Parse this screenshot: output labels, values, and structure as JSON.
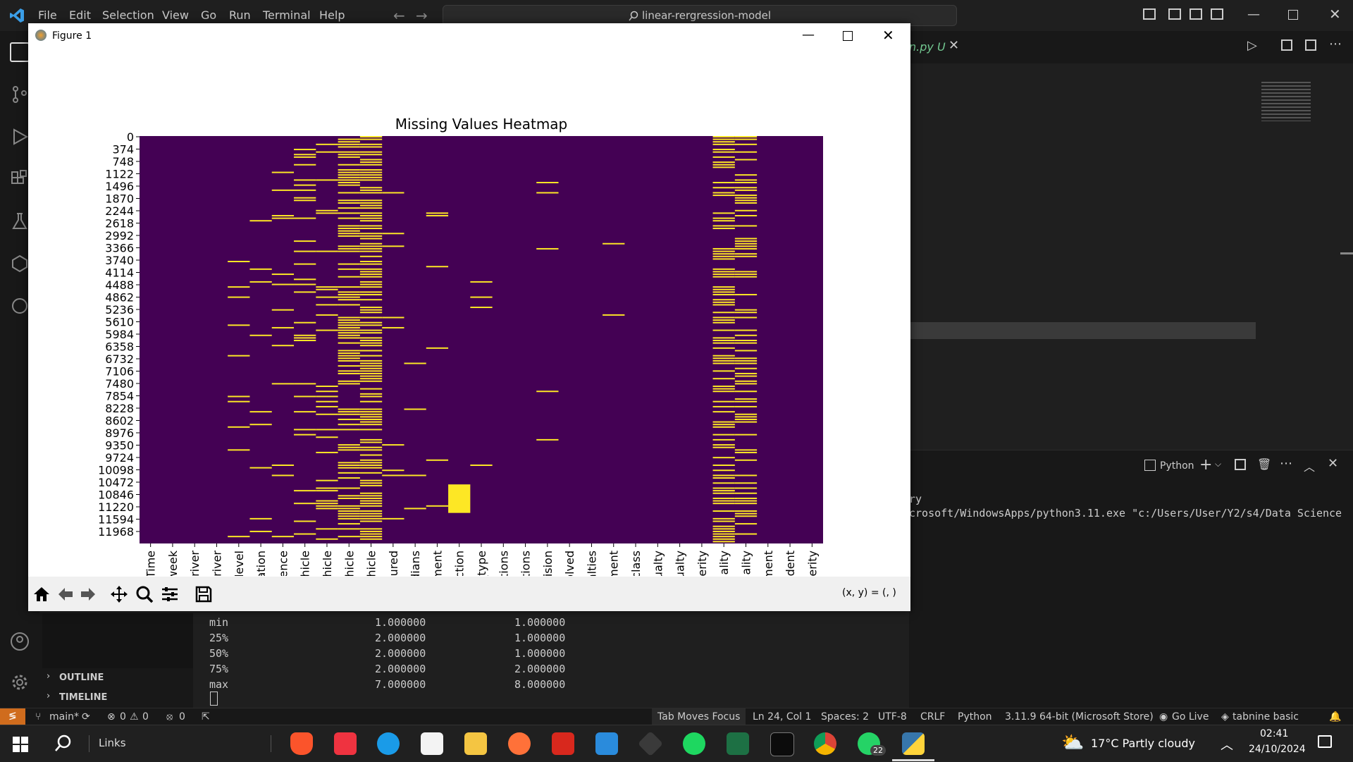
{
  "menu": [
    "File",
    "Edit",
    "Selection",
    "View",
    "Go",
    "Run",
    "Terminal",
    "Help"
  ],
  "search": {
    "text": "linear-rergression-model"
  },
  "editor_tab": {
    "label": "n.py",
    "badge": "U"
  },
  "figure": {
    "title": "Figure 1",
    "coords": "(x, y) = (, )",
    "plot_title": "Missing Values Heatmap"
  },
  "chart_data": {
    "type": "heatmap",
    "title": "Missing Values Heatmap",
    "y_ticks": [
      "0",
      "374",
      "748",
      "1122",
      "1496",
      "1870",
      "2244",
      "2618",
      "2992",
      "3366",
      "3740",
      "4114",
      "4488",
      "4862",
      "5236",
      "5610",
      "5984",
      "6358",
      "6732",
      "7106",
      "7480",
      "7854",
      "8228",
      "8602",
      "8976",
      "9350",
      "9724",
      "10098",
      "10472",
      "10846",
      "11220",
      "11594",
      "11968"
    ],
    "x_ticks": [
      "Time",
      "of_week",
      "f_driver",
      "f_driver",
      "al_level",
      "relation",
      "erience",
      "_vehicle",
      "_vehicle",
      "_vehicle",
      "_vehicle",
      "occured",
      "Medians",
      "gnment",
      "Junction",
      "ce_type",
      "nditions",
      "nditions",
      "collision",
      "nvolved",
      "sualties",
      "vement",
      "ty_class",
      "casualty",
      "casualty",
      "severity",
      "asuality",
      "asuality",
      "vement",
      "accident",
      "severity"
    ],
    "colors": {
      "present": "#440154",
      "missing": "#fde725"
    },
    "missing_density": [
      0,
      0,
      0,
      0,
      0.1,
      0.08,
      0.07,
      0.2,
      0.12,
      0.55,
      0.65,
      0.03,
      0.03,
      0.03,
      0,
      0.02,
      0,
      0,
      0.02,
      0,
      0,
      0.02,
      0,
      0,
      0,
      0,
      0.55,
      0.45,
      0,
      0,
      0
    ]
  },
  "terminal": {
    "shell_label": "Python",
    "line1": "ry",
    "line2": "crosoft/WindowsApps/python3.11.exe \"c:/Users/User/Y2/s4/Data Science",
    "rows": [
      {
        "label": "min",
        "a": "1.000000",
        "b": "1.000000"
      },
      {
        "label": "25%",
        "a": "2.000000",
        "b": "1.000000"
      },
      {
        "label": "50%",
        "a": "2.000000",
        "b": "1.000000"
      },
      {
        "label": "75%",
        "a": "2.000000",
        "b": "2.000000"
      },
      {
        "label": "max",
        "a": "7.000000",
        "b": "8.000000"
      }
    ]
  },
  "sidebar": {
    "outline": "OUTLINE",
    "timeline": "TIMELINE"
  },
  "status": {
    "branch": "main*",
    "errors": "0",
    "warnings": "0",
    "ports": "0",
    "tab_focus": "Tab Moves Focus",
    "position": "Ln 24, Col 1",
    "spaces": "Spaces: 2",
    "encoding": "UTF-8",
    "eol": "CRLF",
    "language": "Python",
    "interpreter": "3.11.9 64-bit (Microsoft Store)",
    "golive": "Go Live",
    "tabnine": "tabnine basic"
  },
  "taskbar": {
    "search": "Links",
    "weather": "17°C  Partly cloudy",
    "time": "02:41",
    "date": "24/10/2024",
    "whatsapp_badge": "22"
  }
}
